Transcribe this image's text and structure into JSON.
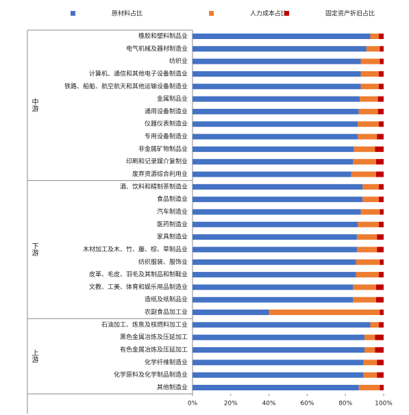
{
  "chart_data": {
    "type": "bar",
    "orientation": "horizontal",
    "stacked": true,
    "groups": [
      {
        "label": "中游",
        "categories": [
          "橡胶和塑料制品业",
          "电气机械及器材制造业",
          "纺织业",
          "计算机、通信和其他电子设备制造业",
          "铁路、船舶、航空航天和其他运输设备制造业",
          "金属制品业",
          "通用设备制造业",
          "仪器仪表制造业",
          "专用设备制造业",
          "非金属矿物制品业",
          "印刷和记录媒介复制业",
          "废弃资源综合利用业"
        ]
      },
      {
        "label": "下游",
        "categories": [
          "酒、饮料和精制茶制造业",
          "食品制造业",
          "汽车制造业",
          "医药制造业",
          "家具制造业",
          "木材加工及木、竹、藤、棕、草制品业",
          "纺织服装、服饰业",
          "皮革、毛皮、羽毛及其制品和制鞋业",
          "文教、工美、体育和娱乐用品制造业",
          "造纸及纸制品业",
          "农副食品加工业"
        ]
      },
      {
        "label": "上游",
        "categories": [
          "石油加工、炼焦及核燃料加工业",
          "黑色金属冶炼及压延加工",
          "有色金属冶炼及压延加工",
          "化学纤维制造业",
          "化学原料及化学制品制造业",
          "其他制造业"
        ]
      }
    ],
    "series": [
      {
        "name": "原材料占比",
        "color": "#4472c4",
        "values": [
          93,
          91,
          88,
          88,
          88,
          87.5,
          87,
          86.5,
          86.5,
          84.5,
          84,
          83,
          89,
          89,
          88,
          86.5,
          86,
          86,
          85.5,
          85.5,
          84,
          84,
          40,
          93,
          90,
          90,
          89.5,
          89.5,
          87
        ]
      },
      {
        "name": "人力成本占比",
        "color": "#ed7d31",
        "values": [
          4.5,
          7,
          10,
          9.5,
          9.5,
          9.5,
          10,
          11,
          10,
          11,
          12,
          13,
          8.5,
          8.5,
          10,
          11,
          10.5,
          10.5,
          12.5,
          12,
          12,
          12,
          58,
          4.5,
          5.5,
          5.5,
          7,
          7,
          11
        ]
      },
      {
        "name": "固定资产折旧占比",
        "color": "#c00000",
        "values": [
          2.5,
          2,
          2,
          2.5,
          2.5,
          3,
          3,
          2.5,
          3.5,
          4.5,
          4,
          4,
          2.5,
          2.5,
          2,
          2.5,
          3.5,
          3.5,
          2,
          2.5,
          4,
          4,
          2,
          2.5,
          4.5,
          4.5,
          3.5,
          3.5,
          2
        ]
      }
    ],
    "xlim": [
      0,
      100
    ],
    "xticks": [
      {
        "value": 0,
        "label": "0%"
      },
      {
        "value": 20,
        "label": "20%"
      },
      {
        "value": 40,
        "label": "40%"
      },
      {
        "value": 60,
        "label": "60%"
      },
      {
        "value": 80,
        "label": "80%"
      },
      {
        "value": 100,
        "label": "100%"
      }
    ],
    "grid": false
  }
}
